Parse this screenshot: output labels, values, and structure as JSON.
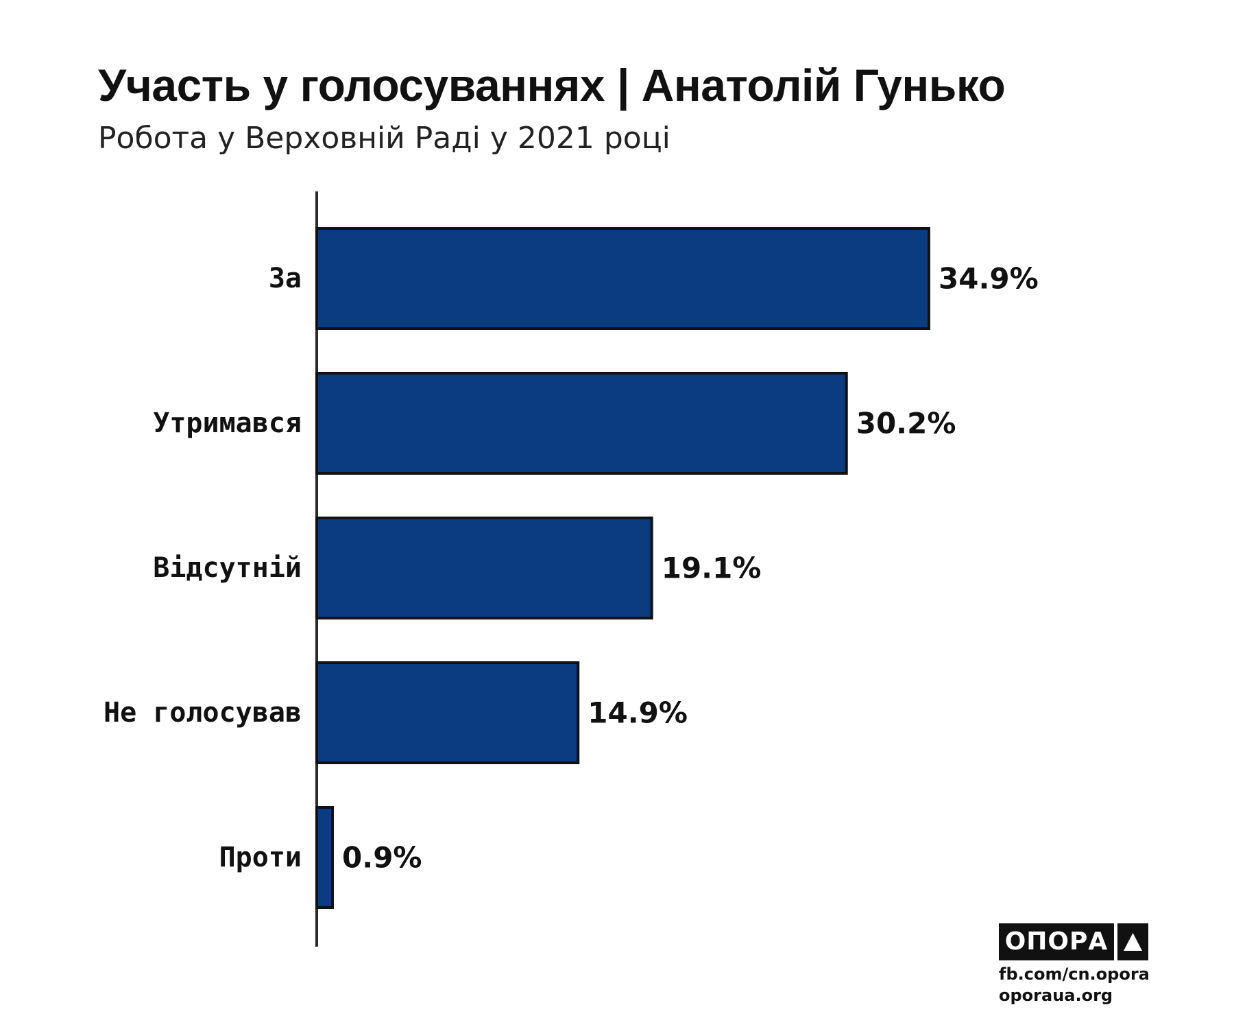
{
  "title": "Участь у голосуваннях | Анатолій Гунько",
  "subtitle": "Робота у Верховній Раді у 2021 році",
  "chart_data": {
    "type": "bar",
    "orientation": "horizontal",
    "categories": [
      "За",
      "Утримався",
      "Відсутній",
      "Не голосував",
      "Проти"
    ],
    "values": [
      34.9,
      30.2,
      19.1,
      14.9,
      0.9
    ],
    "value_labels": [
      "34.9%",
      "30.2%",
      "19.1%",
      "14.9%",
      "0.9%"
    ],
    "unit": "%",
    "xlim": [
      0,
      34.9
    ],
    "grid": false,
    "legend": "none",
    "bar_color": "#0b3b80",
    "bar_edge_color": "#111111",
    "axis_color": "#2a2a2a"
  },
  "branding": {
    "logo_text": "ОПОРА",
    "logo_icon": "triangle-icon",
    "links": [
      "fb.com/cn.opora",
      "oporaua.org"
    ]
  }
}
